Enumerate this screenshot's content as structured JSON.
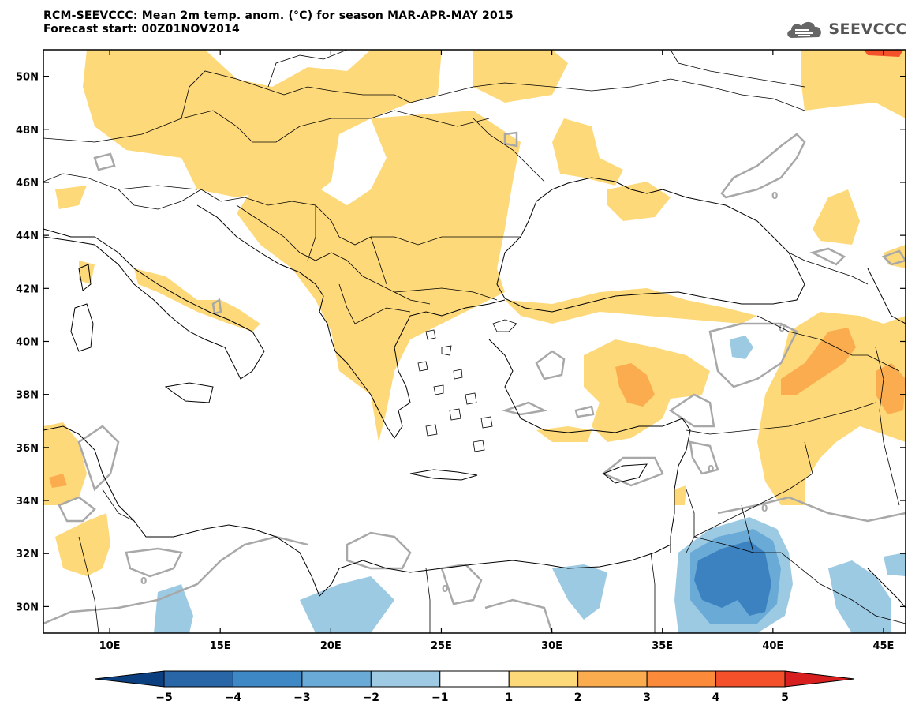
{
  "header": {
    "title_line1": "RCM-SEEVCCC: Mean 2m temp. anom. (°C) for season MAR-APR-MAY 2015",
    "title_line2": "Forecast start: 00Z01NOV2014"
  },
  "logo": {
    "text": "SEEVCCC",
    "icon": "cloud-icon"
  },
  "map": {
    "lon_range": [
      7,
      46
    ],
    "lat_range": [
      29,
      51
    ],
    "lat_ticks": [
      {
        "value": 50,
        "label": "50N"
      },
      {
        "value": 48,
        "label": "48N"
      },
      {
        "value": 46,
        "label": "46N"
      },
      {
        "value": 44,
        "label": "44N"
      },
      {
        "value": 42,
        "label": "42N"
      },
      {
        "value": 40,
        "label": "40N"
      },
      {
        "value": 38,
        "label": "38N"
      },
      {
        "value": 36,
        "label": "36N"
      },
      {
        "value": 34,
        "label": "34N"
      },
      {
        "value": 32,
        "label": "32N"
      },
      {
        "value": 30,
        "label": "30N"
      }
    ],
    "lon_ticks": [
      {
        "value": 10,
        "label": "10E"
      },
      {
        "value": 15,
        "label": "15E"
      },
      {
        "value": 20,
        "label": "20E"
      },
      {
        "value": 25,
        "label": "25E"
      },
      {
        "value": 30,
        "label": "30E"
      },
      {
        "value": 35,
        "label": "35E"
      },
      {
        "value": 40,
        "label": "40E"
      },
      {
        "value": 45,
        "label": "45E"
      }
    ],
    "contour_label": "0",
    "colors": {
      "anom_1_2": "#fdd97a",
      "anom_2_3": "#fbac4e",
      "anom_4_5": "#f4502a",
      "anom_m1_m2": "#9ccae3",
      "anom_m2_m3": "#6aaad6",
      "anom_m3_m4": "#3c82c0",
      "zero_contour": "#a8a8a8"
    }
  },
  "colorbar": {
    "labels": [
      "-5",
      "-4",
      "-3",
      "-2",
      "-1",
      "1",
      "2",
      "3",
      "4",
      "5"
    ],
    "colors": [
      "#0c3f80",
      "#2866a8",
      "#3f88c6",
      "#6aaad6",
      "#9fcae3",
      "#ffffff",
      "#fdd97a",
      "#fbac4e",
      "#fb8a3a",
      "#f4502a",
      "#d81f1f"
    ]
  }
}
